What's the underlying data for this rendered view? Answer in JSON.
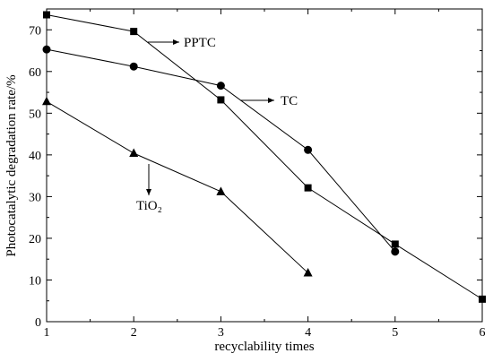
{
  "chart_data": {
    "type": "line",
    "xlabel": "recyclability times",
    "ylabel": "Photocatalytic degradation rate/%",
    "xlim": [
      1,
      6
    ],
    "ylim": [
      0,
      75
    ],
    "xticks": [
      1,
      2,
      3,
      4,
      5,
      6
    ],
    "yticks": [
      0,
      10,
      20,
      30,
      40,
      50,
      60,
      70
    ],
    "grid": false,
    "series": [
      {
        "name": "PPTC",
        "marker": "square",
        "x": [
          1,
          2,
          3,
          4,
          5,
          6
        ],
        "y": [
          73.6,
          69.6,
          53.2,
          32.1,
          18.6,
          5.4
        ]
      },
      {
        "name": "TC",
        "marker": "circle",
        "x": [
          1,
          2,
          3,
          4,
          5
        ],
        "y": [
          65.3,
          61.2,
          56.6,
          41.2,
          16.8
        ]
      },
      {
        "name": "TiO₂",
        "marker": "triangle-up",
        "x": [
          1,
          2,
          3,
          4
        ],
        "y": [
          52.8,
          40.4,
          31.2,
          11.7
        ]
      }
    ]
  },
  "colors": {
    "line": "#000000",
    "background": "#ffffff"
  }
}
